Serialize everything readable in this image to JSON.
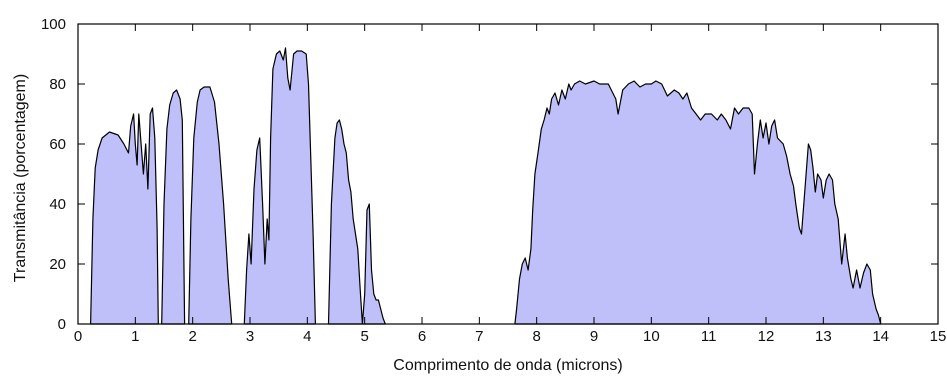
{
  "chart_data": {
    "type": "area",
    "title": "",
    "xlabel": "Comprimento de onda (microns)",
    "ylabel": "Transmitância (porcentagem)",
    "xlim": [
      0,
      15
    ],
    "ylim": [
      0,
      100
    ],
    "xticks": [
      "0",
      "1",
      "2",
      "3",
      "4",
      "5",
      "6",
      "7",
      "8",
      "9",
      "10",
      "11",
      "12",
      "13",
      "14",
      "15"
    ],
    "yticks": [
      "0",
      "20",
      "40",
      "60",
      "80",
      "100"
    ],
    "grid": false,
    "legend": "none",
    "fill_color": "#bfbffa",
    "line_color": "#000000",
    "series": [
      {
        "segments": [
          [
            [
              0.22,
              0
            ],
            [
              0.26,
              35
            ],
            [
              0.3,
              52
            ],
            [
              0.35,
              58
            ],
            [
              0.42,
              62
            ],
            [
              0.55,
              64
            ],
            [
              0.7,
              63
            ],
            [
              0.8,
              60
            ],
            [
              0.88,
              57
            ],
            [
              0.92,
              66
            ],
            [
              0.97,
              70
            ],
            [
              1.0,
              60
            ],
            [
              1.03,
              53
            ],
            [
              1.06,
              70
            ],
            [
              1.1,
              60
            ],
            [
              1.14,
              50
            ],
            [
              1.18,
              60
            ],
            [
              1.22,
              45
            ],
            [
              1.26,
              70
            ],
            [
              1.3,
              72
            ],
            [
              1.34,
              62
            ],
            [
              1.38,
              32
            ],
            [
              1.4,
              0
            ]
          ],
          [
            [
              1.46,
              0
            ],
            [
              1.5,
              40
            ],
            [
              1.55,
              65
            ],
            [
              1.6,
              73
            ],
            [
              1.66,
              77
            ],
            [
              1.72,
              78
            ],
            [
              1.78,
              75
            ],
            [
              1.82,
              68
            ],
            [
              1.86,
              0
            ]
          ],
          [
            [
              1.93,
              0
            ],
            [
              1.97,
              35
            ],
            [
              2.02,
              62
            ],
            [
              2.08,
              74
            ],
            [
              2.13,
              78
            ],
            [
              2.2,
              79
            ],
            [
              2.3,
              79
            ],
            [
              2.38,
              74
            ],
            [
              2.46,
              60
            ],
            [
              2.54,
              40
            ],
            [
              2.62,
              15
            ],
            [
              2.68,
              0
            ]
          ],
          [
            [
              2.9,
              0
            ],
            [
              2.94,
              18
            ],
            [
              2.98,
              30
            ],
            [
              3.02,
              20
            ],
            [
              3.07,
              45
            ],
            [
              3.12,
              58
            ],
            [
              3.17,
              62
            ],
            [
              3.22,
              40
            ],
            [
              3.26,
              20
            ],
            [
              3.3,
              35
            ],
            [
              3.33,
              28
            ],
            [
              3.36,
              62
            ],
            [
              3.4,
              85
            ],
            [
              3.46,
              90
            ],
            [
              3.52,
              91
            ],
            [
              3.58,
              88
            ],
            [
              3.62,
              92
            ],
            [
              3.66,
              82
            ],
            [
              3.7,
              78
            ],
            [
              3.76,
              90
            ],
            [
              3.82,
              91
            ],
            [
              3.9,
              91
            ],
            [
              3.98,
              90
            ],
            [
              4.02,
              80
            ],
            [
              4.06,
              55
            ],
            [
              4.1,
              30
            ],
            [
              4.14,
              0
            ]
          ],
          [
            [
              4.37,
              0
            ],
            [
              4.42,
              40
            ],
            [
              4.48,
              62
            ],
            [
              4.52,
              67
            ],
            [
              4.56,
              68
            ],
            [
              4.6,
              65
            ],
            [
              4.64,
              60
            ],
            [
              4.68,
              57
            ],
            [
              4.72,
              48
            ],
            [
              4.76,
              44
            ],
            [
              4.8,
              35
            ],
            [
              4.84,
              30
            ],
            [
              4.88,
              25
            ],
            [
              4.92,
              12
            ],
            [
              4.96,
              0
            ],
            [
              5.0,
              10
            ],
            [
              5.04,
              38
            ],
            [
              5.08,
              40
            ],
            [
              5.12,
              18
            ],
            [
              5.16,
              10
            ],
            [
              5.2,
              8
            ],
            [
              5.24,
              8
            ],
            [
              5.28,
              5
            ],
            [
              5.32,
              2
            ],
            [
              5.36,
              0
            ]
          ]
        ]
      },
      {
        "segments": [
          [
            [
              7.62,
              0
            ],
            [
              7.65,
              5
            ],
            [
              7.7,
              15
            ],
            [
              7.75,
              20
            ],
            [
              7.8,
              22
            ],
            [
              7.85,
              18
            ],
            [
              7.9,
              25
            ],
            [
              7.93,
              38
            ],
            [
              7.97,
              50
            ],
            [
              8.03,
              58
            ],
            [
              8.08,
              65
            ],
            [
              8.13,
              68
            ],
            [
              8.18,
              72
            ],
            [
              8.22,
              70
            ],
            [
              8.26,
              75
            ],
            [
              8.32,
              77
            ],
            [
              8.38,
              73
            ],
            [
              8.44,
              78
            ],
            [
              8.5,
              75
            ],
            [
              8.56,
              80
            ],
            [
              8.6,
              78
            ],
            [
              8.66,
              80
            ],
            [
              8.75,
              81
            ],
            [
              8.85,
              80
            ],
            [
              9.0,
              81
            ],
            [
              9.1,
              80
            ],
            [
              9.25,
              80
            ],
            [
              9.38,
              75
            ],
            [
              9.42,
              70
            ],
            [
              9.5,
              78
            ],
            [
              9.6,
              80
            ],
            [
              9.7,
              81
            ],
            [
              9.8,
              79
            ],
            [
              9.9,
              80
            ],
            [
              10.0,
              80
            ],
            [
              10.08,
              81
            ],
            [
              10.18,
              80
            ],
            [
              10.28,
              76
            ],
            [
              10.4,
              78
            ],
            [
              10.48,
              77
            ],
            [
              10.55,
              75
            ],
            [
              10.62,
              77
            ],
            [
              10.7,
              72
            ],
            [
              10.78,
              70
            ],
            [
              10.86,
              68
            ],
            [
              10.94,
              70
            ],
            [
              11.05,
              70
            ],
            [
              11.15,
              68
            ],
            [
              11.22,
              70
            ],
            [
              11.3,
              68
            ],
            [
              11.38,
              65
            ],
            [
              11.45,
              72
            ],
            [
              11.52,
              70
            ],
            [
              11.6,
              72
            ],
            [
              11.7,
              72
            ],
            [
              11.76,
              70
            ],
            [
              11.8,
              50
            ],
            [
              11.85,
              60
            ],
            [
              11.9,
              68
            ],
            [
              11.95,
              62
            ],
            [
              12.0,
              67
            ],
            [
              12.05,
              60
            ],
            [
              12.1,
              66
            ],
            [
              12.15,
              68
            ],
            [
              12.2,
              62
            ],
            [
              12.3,
              60
            ],
            [
              12.36,
              56
            ],
            [
              12.42,
              50
            ],
            [
              12.48,
              46
            ],
            [
              12.52,
              40
            ],
            [
              12.58,
              32
            ],
            [
              12.62,
              30
            ],
            [
              12.66,
              40
            ],
            [
              12.7,
              50
            ],
            [
              12.74,
              60
            ],
            [
              12.78,
              58
            ],
            [
              12.82,
              52
            ],
            [
              12.86,
              44
            ],
            [
              12.9,
              50
            ],
            [
              12.96,
              48
            ],
            [
              13.0,
              42
            ],
            [
              13.05,
              48
            ],
            [
              13.1,
              50
            ],
            [
              13.16,
              48
            ],
            [
              13.2,
              40
            ],
            [
              13.26,
              35
            ],
            [
              13.32,
              20
            ],
            [
              13.38,
              30
            ],
            [
              13.42,
              22
            ],
            [
              13.48,
              15
            ],
            [
              13.52,
              12
            ],
            [
              13.58,
              18
            ],
            [
              13.64,
              12
            ],
            [
              13.7,
              17
            ],
            [
              13.76,
              20
            ],
            [
              13.82,
              18
            ],
            [
              13.86,
              10
            ],
            [
              13.92,
              5
            ],
            [
              13.96,
              3
            ],
            [
              14.0,
              0
            ]
          ]
        ]
      }
    ]
  }
}
